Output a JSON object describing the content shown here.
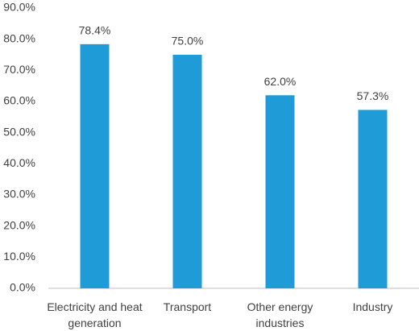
{
  "chart_data": {
    "type": "bar",
    "categories": [
      "Electricity and heat generation",
      "Transport",
      "Other energy industries",
      "Industry"
    ],
    "values": [
      78.4,
      75.0,
      62.0,
      57.3
    ],
    "value_labels": [
      "78.4%",
      "75.0%",
      "62.0%",
      "57.3%"
    ],
    "color": "#1f9bd7",
    "ylim": [
      0,
      90
    ],
    "yticks": [
      {
        "value": 0,
        "label": "0.0%"
      },
      {
        "value": 10,
        "label": "10.0%"
      },
      {
        "value": 20,
        "label": "20.0%"
      },
      {
        "value": 30,
        "label": "30.0%"
      },
      {
        "value": 40,
        "label": "40.0%"
      },
      {
        "value": 50,
        "label": "50.0%"
      },
      {
        "value": 60,
        "label": "60.0%"
      },
      {
        "value": 70,
        "label": "70.0%"
      },
      {
        "value": 80,
        "label": "80.0%"
      },
      {
        "value": 90,
        "label": "90.0%"
      }
    ],
    "grid": false
  }
}
